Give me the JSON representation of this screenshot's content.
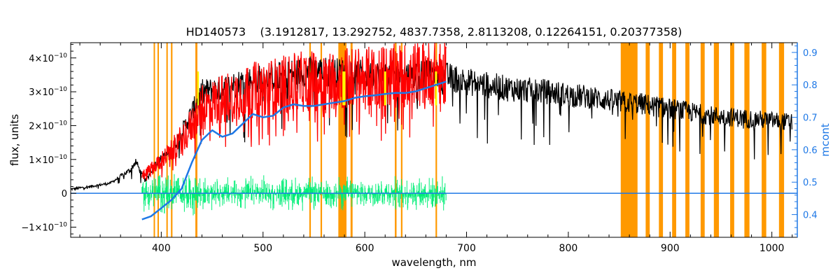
{
  "chart_data": {
    "type": "line",
    "title": "HD140573    (3.1912817, 13.292752, 4837.7358, 2.8113208, 0.12264151, 0.20377358)",
    "xlabel": "wavelength, nm",
    "ylabel": "flux, units",
    "y2label": "mcont",
    "xlim": [
      311,
      1025
    ],
    "ylim": [
      -1.3e-10,
      4.45e-10
    ],
    "y2lim": [
      0.33,
      0.93
    ],
    "x_ticks": [
      400,
      500,
      600,
      700,
      800,
      900,
      1000
    ],
    "y_ticks": [
      {
        "value": 4e-10,
        "mant": "4×10",
        "exp": "−10"
      },
      {
        "value": 3e-10,
        "mant": "3×10",
        "exp": "−10"
      },
      {
        "value": 2e-10,
        "mant": "2×10",
        "exp": "−10"
      },
      {
        "value": 1e-10,
        "mant": "1×10",
        "exp": "−10"
      },
      {
        "value": 0,
        "mant": "0",
        "exp": ""
      },
      {
        "value": -1e-10,
        "mant": "−1×10",
        "exp": "−10"
      }
    ],
    "y2_ticks": [
      0.4,
      0.5,
      0.6,
      0.7,
      0.8,
      0.9
    ],
    "masked_bands_nm": [
      [
        392.5,
        393.8
      ],
      [
        396.3,
        397.5
      ],
      [
        405.0,
        406.4
      ],
      [
        409.5,
        411.0
      ],
      [
        433.5,
        435.5
      ],
      [
        545.5,
        547.0
      ],
      [
        556.5,
        558.0
      ],
      [
        574.0,
        582.0
      ],
      [
        586.0,
        588.0
      ],
      [
        629.5,
        631.2
      ],
      [
        635.5,
        637.0
      ],
      [
        669.5,
        671.0
      ],
      [
        851.5,
        868.0
      ],
      [
        876.0,
        880.0
      ],
      [
        889.0,
        893.0
      ],
      [
        902.0,
        906.0
      ],
      [
        915.0,
        919.0
      ],
      [
        930.0,
        934.0
      ],
      [
        943.0,
        948.0
      ],
      [
        959.0,
        963.0
      ],
      [
        973.0,
        978.0
      ],
      [
        990.0,
        994.5
      ],
      [
        1007.0,
        1012.0
      ]
    ],
    "series": [
      {
        "name": "",
        "role": "observed flux",
        "color": "#000000",
        "x": [
          311,
          330,
          350,
          360,
          370,
          375,
          380,
          385,
          395,
          410,
          420,
          430,
          440,
          460,
          480,
          500,
          520,
          540,
          560,
          580,
          600,
          620,
          640,
          660,
          680,
          700,
          720,
          740,
          760,
          780,
          800,
          820,
          840,
          850,
          870,
          880,
          900,
          920,
          940,
          960,
          980,
          1000,
          1020
        ],
        "y": [
          1.2e-11,
          2e-11,
          3e-11,
          5e-11,
          7e-11,
          9.5e-11,
          6e-11,
          4e-11,
          9e-11,
          1.25e-10,
          1.8e-10,
          2.4e-10,
          3e-10,
          3.1e-10,
          3.3e-10,
          3.4e-10,
          3.5e-10,
          3.6e-10,
          3.6e-10,
          3.55e-10,
          3.5e-10,
          3.5e-10,
          3.5e-10,
          3.5e-10,
          3.45e-10,
          3.3e-10,
          3.2e-10,
          3.1e-10,
          3.05e-10,
          3e-10,
          2.9e-10,
          2.85e-10,
          2.75e-10,
          2.7e-10,
          2.65e-10,
          2.6e-10,
          2.5e-10,
          2.4e-10,
          2.3e-10,
          2.25e-10,
          2.2e-10,
          2.15e-10,
          2.1e-10
        ]
      },
      {
        "name": "",
        "role": "model flux",
        "color": "#ff0000",
        "x": [
          381,
          395,
          410,
          425,
          440,
          460,
          480,
          500,
          520,
          540,
          560,
          580,
          600,
          620,
          640,
          660,
          680
        ],
        "y": [
          5e-11,
          8.5e-11,
          1.25e-10,
          1.8e-10,
          2.5e-10,
          2.8e-10,
          3e-10,
          3.1e-10,
          3.2e-10,
          3.3e-10,
          3.35e-10,
          3.4e-10,
          3.4e-10,
          3.45e-10,
          3.5e-10,
          3.55e-10,
          3.55e-10
        ]
      },
      {
        "name": "",
        "role": "residuals",
        "color": "#00ee77",
        "x": [
          381,
          680
        ],
        "y": [
          0,
          0
        ]
      },
      {
        "name": "",
        "role": "continuum (mcont, right axis)",
        "color": "#1e78e6",
        "axis": "right",
        "x": [
          381,
          390,
          400,
          410,
          420,
          430,
          440,
          450,
          460,
          470,
          480,
          490,
          500,
          510,
          520,
          530,
          540,
          550,
          560,
          570,
          580,
          590,
          600,
          610,
          620,
          630,
          640,
          650,
          660,
          670,
          680
        ],
        "y": [
          0.385,
          0.395,
          0.42,
          0.445,
          0.48,
          0.56,
          0.63,
          0.66,
          0.64,
          0.65,
          0.68,
          0.71,
          0.7,
          0.705,
          0.73,
          0.74,
          0.735,
          0.735,
          0.74,
          0.745,
          0.75,
          0.76,
          0.765,
          0.768,
          0.772,
          0.775,
          0.775,
          0.78,
          0.79,
          0.8,
          0.81
        ]
      }
    ],
    "colors": {
      "mask": "#ff9900",
      "mask_highlight": "#ffff00",
      "right_axis": "#1e78e6",
      "axes": "#000000"
    },
    "grid": false,
    "legend": "none"
  }
}
